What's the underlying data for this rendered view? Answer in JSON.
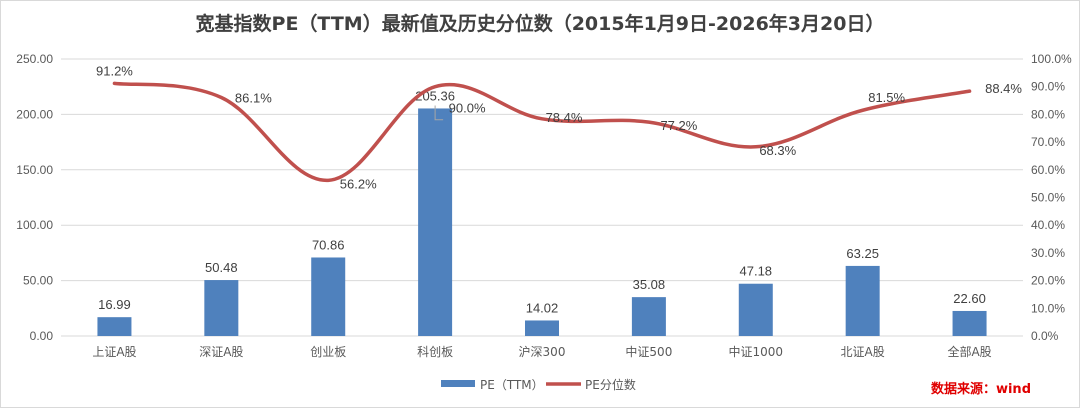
{
  "title": "宽基指数PE（TTM）最新值及历史分位数（2015年1月9日-2026年3月20日）",
  "source_note": "数据来源：wind",
  "chart_data": {
    "type": "bar+line",
    "categories": [
      "上证A股",
      "深证A股",
      "创业板",
      "科创板",
      "沪深300",
      "中证500",
      "中证1000",
      "北证A股",
      "全部A股"
    ],
    "series": [
      {
        "name": "PE（TTM）",
        "type": "bar",
        "axis": "left",
        "color": "#4f81bd",
        "values": [
          16.99,
          50.48,
          70.86,
          205.36,
          14.02,
          35.08,
          47.18,
          63.25,
          22.6
        ],
        "labels": [
          "16.99",
          "50.48",
          "70.86",
          "205.36",
          "14.02",
          "35.08",
          "47.18",
          "63.25",
          "22.60"
        ]
      },
      {
        "name": "PE分位数",
        "type": "line",
        "axis": "right",
        "color": "#c0504d",
        "values": [
          91.2,
          86.1,
          56.2,
          90.0,
          78.4,
          77.2,
          68.3,
          81.5,
          88.4
        ],
        "labels": [
          "91.2%",
          "86.1%",
          "56.2%",
          "90.0%",
          "78.4%",
          "77.2%",
          "68.3%",
          "81.5%",
          "88.4%"
        ]
      }
    ],
    "left_axis": {
      "range": [
        0,
        250
      ],
      "ticks": [
        "0.00",
        "50.00",
        "100.00",
        "150.00",
        "200.00",
        "250.00"
      ]
    },
    "right_axis": {
      "range": [
        0,
        100
      ],
      "ticks": [
        "0.0%",
        "10.0%",
        "20.0%",
        "30.0%",
        "40.0%",
        "50.0%",
        "60.0%",
        "70.0%",
        "80.0%",
        "90.0%",
        "100.0%"
      ]
    },
    "grid": true,
    "legend": "bottom"
  }
}
